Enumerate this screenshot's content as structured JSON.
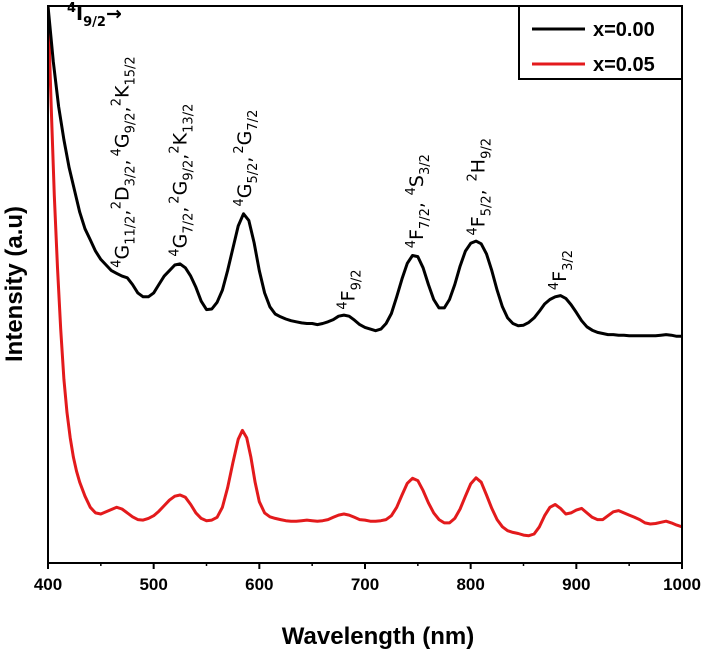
{
  "chart_data": {
    "type": "line",
    "title": "",
    "xlabel": "Wavelength (nm)",
    "ylabel": "Intensity (a.u)",
    "xlim": [
      400,
      1000
    ],
    "ylim": [
      0,
      1
    ],
    "xticks": [
      400,
      500,
      600,
      700,
      800,
      900,
      1000
    ],
    "x_tick_labels": [
      "400",
      "500",
      "600",
      "700",
      "800",
      "900",
      "1000"
    ],
    "colors": {
      "x000": "#000000",
      "x005": "#e31a1c"
    },
    "legend": [
      {
        "label": "x=0.00",
        "color": "#000000"
      },
      {
        "label": "x=0.05",
        "color": "#e31a1c"
      }
    ],
    "series": [
      {
        "name": "x=0.00",
        "color": "#000000",
        "points": [
          [
            400,
            1.0
          ],
          [
            405,
            0.9
          ],
          [
            410,
            0.82
          ],
          [
            415,
            0.76
          ],
          [
            420,
            0.71
          ],
          [
            425,
            0.67
          ],
          [
            430,
            0.63
          ],
          [
            435,
            0.6
          ],
          [
            440,
            0.58
          ],
          [
            445,
            0.56
          ],
          [
            450,
            0.545
          ],
          [
            455,
            0.535
          ],
          [
            460,
            0.525
          ],
          [
            465,
            0.52
          ],
          [
            470,
            0.515
          ],
          [
            475,
            0.512
          ],
          [
            480,
            0.5
          ],
          [
            485,
            0.485
          ],
          [
            490,
            0.478
          ],
          [
            495,
            0.478
          ],
          [
            500,
            0.485
          ],
          [
            505,
            0.5
          ],
          [
            510,
            0.515
          ],
          [
            515,
            0.525
          ],
          [
            520,
            0.535
          ],
          [
            525,
            0.537
          ],
          [
            530,
            0.53
          ],
          [
            535,
            0.515
          ],
          [
            540,
            0.495
          ],
          [
            545,
            0.47
          ],
          [
            550,
            0.455
          ],
          [
            555,
            0.456
          ],
          [
            560,
            0.468
          ],
          [
            565,
            0.49
          ],
          [
            570,
            0.525
          ],
          [
            575,
            0.565
          ],
          [
            580,
            0.605
          ],
          [
            585,
            0.627
          ],
          [
            590,
            0.615
          ],
          [
            595,
            0.575
          ],
          [
            600,
            0.525
          ],
          [
            605,
            0.485
          ],
          [
            610,
            0.46
          ],
          [
            615,
            0.447
          ],
          [
            620,
            0.442
          ],
          [
            625,
            0.438
          ],
          [
            630,
            0.435
          ],
          [
            635,
            0.433
          ],
          [
            640,
            0.431
          ],
          [
            645,
            0.43
          ],
          [
            650,
            0.43
          ],
          [
            655,
            0.428
          ],
          [
            660,
            0.43
          ],
          [
            665,
            0.433
          ],
          [
            670,
            0.437
          ],
          [
            675,
            0.443
          ],
          [
            680,
            0.445
          ],
          [
            685,
            0.443
          ],
          [
            690,
            0.436
          ],
          [
            695,
            0.428
          ],
          [
            700,
            0.423
          ],
          [
            705,
            0.42
          ],
          [
            710,
            0.417
          ],
          [
            715,
            0.42
          ],
          [
            720,
            0.43
          ],
          [
            725,
            0.448
          ],
          [
            730,
            0.478
          ],
          [
            735,
            0.51
          ],
          [
            740,
            0.538
          ],
          [
            745,
            0.552
          ],
          [
            750,
            0.55
          ],
          [
            755,
            0.53
          ],
          [
            760,
            0.5
          ],
          [
            765,
            0.473
          ],
          [
            770,
            0.458
          ],
          [
            775,
            0.458
          ],
          [
            780,
            0.473
          ],
          [
            785,
            0.5
          ],
          [
            790,
            0.533
          ],
          [
            795,
            0.56
          ],
          [
            800,
            0.574
          ],
          [
            805,
            0.578
          ],
          [
            810,
            0.573
          ],
          [
            815,
            0.555
          ],
          [
            820,
            0.525
          ],
          [
            825,
            0.49
          ],
          [
            830,
            0.46
          ],
          [
            835,
            0.44
          ],
          [
            840,
            0.43
          ],
          [
            845,
            0.426
          ],
          [
            850,
            0.427
          ],
          [
            855,
            0.432
          ],
          [
            860,
            0.44
          ],
          [
            865,
            0.452
          ],
          [
            870,
            0.465
          ],
          [
            875,
            0.473
          ],
          [
            880,
            0.478
          ],
          [
            885,
            0.48
          ],
          [
            890,
            0.475
          ],
          [
            895,
            0.464
          ],
          [
            900,
            0.45
          ],
          [
            905,
            0.435
          ],
          [
            910,
            0.424
          ],
          [
            915,
            0.418
          ],
          [
            920,
            0.414
          ],
          [
            925,
            0.412
          ],
          [
            930,
            0.41
          ],
          [
            935,
            0.41
          ],
          [
            940,
            0.409
          ],
          [
            945,
            0.409
          ],
          [
            950,
            0.408
          ],
          [
            955,
            0.408
          ],
          [
            960,
            0.408
          ],
          [
            965,
            0.408
          ],
          [
            970,
            0.408
          ],
          [
            975,
            0.408
          ],
          [
            980,
            0.409
          ],
          [
            985,
            0.41
          ],
          [
            990,
            0.409
          ],
          [
            995,
            0.407
          ],
          [
            1000,
            0.407
          ]
        ]
      },
      {
        "name": "x=0.05",
        "color": "#e31a1c",
        "points": [
          [
            400,
            1.0
          ],
          [
            403,
            0.82
          ],
          [
            406,
            0.66
          ],
          [
            409,
            0.53
          ],
          [
            412,
            0.42
          ],
          [
            415,
            0.33
          ],
          [
            418,
            0.27
          ],
          [
            421,
            0.225
          ],
          [
            424,
            0.19
          ],
          [
            427,
            0.165
          ],
          [
            430,
            0.145
          ],
          [
            435,
            0.12
          ],
          [
            440,
            0.1
          ],
          [
            445,
            0.09
          ],
          [
            450,
            0.088
          ],
          [
            455,
            0.092
          ],
          [
            460,
            0.096
          ],
          [
            465,
            0.1
          ],
          [
            470,
            0.097
          ],
          [
            475,
            0.09
          ],
          [
            480,
            0.083
          ],
          [
            485,
            0.078
          ],
          [
            490,
            0.077
          ],
          [
            495,
            0.08
          ],
          [
            500,
            0.085
          ],
          [
            505,
            0.093
          ],
          [
            510,
            0.103
          ],
          [
            515,
            0.113
          ],
          [
            520,
            0.12
          ],
          [
            525,
            0.122
          ],
          [
            530,
            0.118
          ],
          [
            535,
            0.105
          ],
          [
            540,
            0.09
          ],
          [
            545,
            0.08
          ],
          [
            550,
            0.076
          ],
          [
            555,
            0.077
          ],
          [
            560,
            0.082
          ],
          [
            565,
            0.1
          ],
          [
            570,
            0.135
          ],
          [
            575,
            0.18
          ],
          [
            580,
            0.222
          ],
          [
            584,
            0.238
          ],
          [
            588,
            0.225
          ],
          [
            592,
            0.19
          ],
          [
            596,
            0.145
          ],
          [
            600,
            0.11
          ],
          [
            605,
            0.09
          ],
          [
            610,
            0.083
          ],
          [
            615,
            0.08
          ],
          [
            620,
            0.078
          ],
          [
            625,
            0.076
          ],
          [
            630,
            0.075
          ],
          [
            635,
            0.075
          ],
          [
            640,
            0.076
          ],
          [
            645,
            0.077
          ],
          [
            650,
            0.076
          ],
          [
            655,
            0.075
          ],
          [
            660,
            0.076
          ],
          [
            665,
            0.078
          ],
          [
            670,
            0.082
          ],
          [
            675,
            0.086
          ],
          [
            680,
            0.088
          ],
          [
            685,
            0.086
          ],
          [
            690,
            0.082
          ],
          [
            695,
            0.078
          ],
          [
            700,
            0.077
          ],
          [
            705,
            0.075
          ],
          [
            710,
            0.075
          ],
          [
            715,
            0.076
          ],
          [
            720,
            0.078
          ],
          [
            725,
            0.085
          ],
          [
            730,
            0.1
          ],
          [
            735,
            0.122
          ],
          [
            740,
            0.143
          ],
          [
            745,
            0.152
          ],
          [
            750,
            0.148
          ],
          [
            755,
            0.13
          ],
          [
            760,
            0.108
          ],
          [
            765,
            0.09
          ],
          [
            770,
            0.078
          ],
          [
            775,
            0.072
          ],
          [
            780,
            0.072
          ],
          [
            785,
            0.08
          ],
          [
            790,
            0.097
          ],
          [
            795,
            0.12
          ],
          [
            800,
            0.142
          ],
          [
            805,
            0.153
          ],
          [
            810,
            0.145
          ],
          [
            815,
            0.122
          ],
          [
            820,
            0.098
          ],
          [
            825,
            0.078
          ],
          [
            830,
            0.065
          ],
          [
            835,
            0.058
          ],
          [
            840,
            0.055
          ],
          [
            845,
            0.053
          ],
          [
            850,
            0.05
          ],
          [
            855,
            0.049
          ],
          [
            860,
            0.052
          ],
          [
            865,
            0.065
          ],
          [
            870,
            0.085
          ],
          [
            875,
            0.1
          ],
          [
            880,
            0.105
          ],
          [
            885,
            0.098
          ],
          [
            890,
            0.088
          ],
          [
            895,
            0.09
          ],
          [
            900,
            0.095
          ],
          [
            905,
            0.098
          ],
          [
            910,
            0.09
          ],
          [
            915,
            0.082
          ],
          [
            920,
            0.078
          ],
          [
            925,
            0.078
          ],
          [
            930,
            0.085
          ],
          [
            935,
            0.092
          ],
          [
            940,
            0.094
          ],
          [
            945,
            0.09
          ],
          [
            950,
            0.086
          ],
          [
            955,
            0.082
          ],
          [
            960,
            0.078
          ],
          [
            965,
            0.072
          ],
          [
            970,
            0.07
          ],
          [
            975,
            0.071
          ],
          [
            980,
            0.073
          ],
          [
            985,
            0.075
          ],
          [
            990,
            0.072
          ],
          [
            995,
            0.068
          ],
          [
            1000,
            0.065
          ]
        ]
      }
    ],
    "annotations": [
      {
        "id": "ann-4i92",
        "base": "I",
        "pre_sup": "4",
        "sub": "9/2",
        "suffix": "→",
        "x": 418,
        "y": 0.975,
        "angle": 0
      },
      {
        "id": "ann-4g112",
        "base": "G",
        "pre_sup": "4",
        "sub": "11/2",
        "suffix": ",",
        "x": 476,
        "y": 0.53,
        "angle": -90
      },
      {
        "id": "ann-2d32",
        "base": "D",
        "pre_sup": "2",
        "sub": "3/2",
        "suffix": ",",
        "x": 476,
        "y": 0.635,
        "angle": -90
      },
      {
        "id": "ann-4g92a",
        "base": "G",
        "pre_sup": "4",
        "sub": "9/2",
        "suffix": ",",
        "x": 476,
        "y": 0.73,
        "angle": -90
      },
      {
        "id": "ann-2k152",
        "base": "K",
        "pre_sup": "2",
        "sub": "15/2",
        "suffix": "",
        "x": 476,
        "y": 0.82,
        "angle": -90
      },
      {
        "id": "ann-4g72",
        "base": "G",
        "pre_sup": "4",
        "sub": "7/2",
        "suffix": ",",
        "x": 531,
        "y": 0.55,
        "angle": -90
      },
      {
        "id": "ann-2g92",
        "base": "G",
        "pre_sup": "2",
        "sub": "9/2",
        "suffix": ",",
        "x": 531,
        "y": 0.645,
        "angle": -90
      },
      {
        "id": "ann-2k132",
        "base": "K",
        "pre_sup": "2",
        "sub": "13/2",
        "suffix": "",
        "x": 531,
        "y": 0.735,
        "angle": -90
      },
      {
        "id": "ann-4g52",
        "base": "G",
        "pre_sup": "4",
        "sub": "5/2",
        "suffix": ",",
        "x": 592,
        "y": 0.64,
        "angle": -90
      },
      {
        "id": "ann-2g72",
        "base": "G",
        "pre_sup": "2",
        "sub": "7/2",
        "suffix": "",
        "x": 592,
        "y": 0.735,
        "angle": -90
      },
      {
        "id": "ann-4f92",
        "base": "F",
        "pre_sup": "4",
        "sub": "9/2",
        "suffix": "",
        "x": 690,
        "y": 0.455,
        "angle": -90
      },
      {
        "id": "ann-4f72",
        "base": "F",
        "pre_sup": "4",
        "sub": "7/2",
        "suffix": ",",
        "x": 755,
        "y": 0.565,
        "angle": -90
      },
      {
        "id": "ann-4s32",
        "base": "S",
        "pre_sup": "4",
        "sub": "3/2",
        "suffix": "",
        "x": 755,
        "y": 0.66,
        "angle": -90
      },
      {
        "id": "ann-4f52",
        "base": "F",
        "pre_sup": "4",
        "sub": "5/2",
        "suffix": ",",
        "x": 813,
        "y": 0.588,
        "angle": -90
      },
      {
        "id": "ann-2h92",
        "base": "H",
        "pre_sup": "2",
        "sub": "9/2",
        "suffix": "",
        "x": 813,
        "y": 0.685,
        "angle": -90
      },
      {
        "id": "ann-4f32",
        "base": "F",
        "pre_sup": "4",
        "sub": "3/2",
        "suffix": "",
        "x": 890,
        "y": 0.49,
        "angle": -90
      }
    ]
  }
}
